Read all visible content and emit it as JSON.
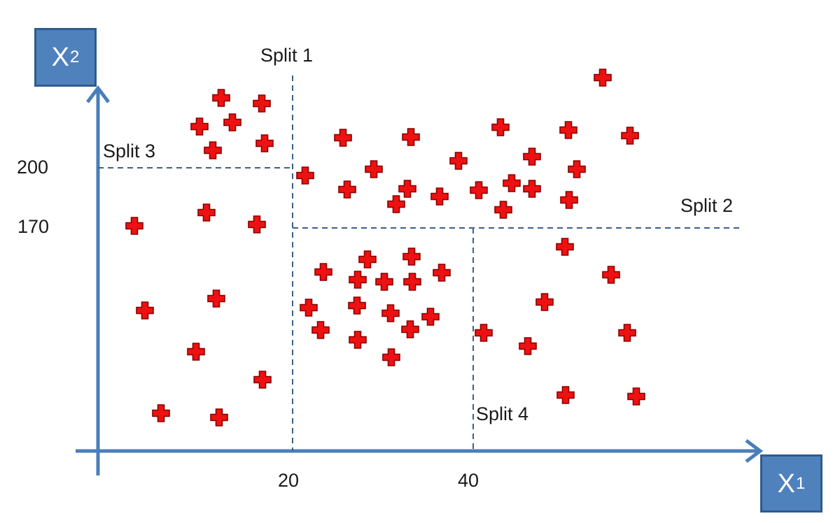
{
  "axes": {
    "x": {
      "letter": "X",
      "subscript": "1"
    },
    "y": {
      "letter": "X",
      "subscript": "2"
    }
  },
  "ticks": {
    "x": [
      "20",
      "40"
    ],
    "y": [
      "200",
      "170"
    ]
  },
  "splits": {
    "split1": "Split 1",
    "split2": "Split 2",
    "split3": "Split 3",
    "split4": "Split 4"
  },
  "colors": {
    "axis": "#4a7ebb",
    "axis_box": "#4f81bd",
    "split_line": "#3b5f8a",
    "marker": "#ee1111",
    "marker_outline": "#8a0000"
  },
  "marker_shape": "plus-icon",
  "scale": {
    "x_origin": 0,
    "x_per_20": 20,
    "y_ticks": [
      200,
      170
    ]
  }
}
